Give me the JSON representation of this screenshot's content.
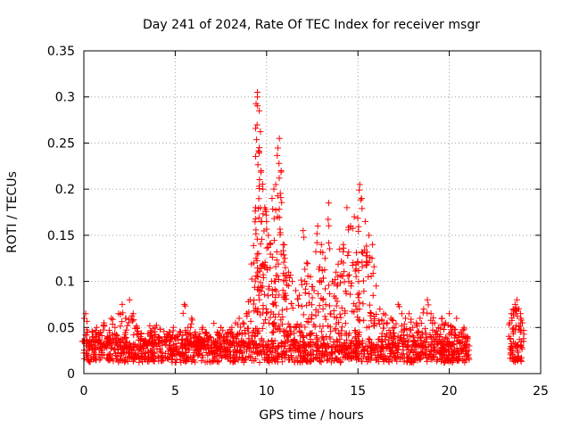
{
  "colors": {
    "series": "#ff0000",
    "grid": "#a0a0a0",
    "frame": "#000000",
    "background": "#ffffff"
  },
  "chart_data": {
    "type": "scatter",
    "title": "Day 241 of 2024, Rate Of TEC Index for receiver msgr",
    "xlabel": "GPS time / hours",
    "ylabel": "ROTI / TECUs",
    "xlim": [
      0,
      25
    ],
    "ylim": [
      0,
      0.35
    ],
    "xticks": [
      "0",
      "5",
      "10",
      "15",
      "20",
      "25"
    ],
    "yticks": [
      "0",
      "0.05",
      "0.1",
      "0.15",
      "0.2",
      "0.25",
      "0.3",
      "0.35"
    ],
    "grid": true,
    "marker": "plus",
    "legend": "none",
    "series": [
      {
        "color": "#ff0000",
        "x": [
          0.0,
          0.1,
          0.2,
          0.3,
          0.5,
          0.7,
          0.9,
          1.1,
          1.3,
          1.5,
          1.7,
          1.9,
          2.1,
          2.3,
          2.5,
          2.7,
          2.9,
          3.1,
          3.3,
          3.5,
          3.7,
          3.9,
          4.1,
          4.3,
          4.5,
          4.7,
          4.9,
          5.1,
          5.3,
          5.5,
          5.7,
          5.9,
          6.1,
          6.3,
          6.5,
          6.7,
          6.9,
          7.1,
          7.3,
          7.5,
          7.7,
          7.9,
          8.1,
          8.3,
          8.5,
          8.7,
          8.9,
          9.1,
          9.3,
          9.4,
          9.5,
          9.5,
          9.6,
          9.6,
          9.7,
          9.8,
          9.9,
          10.0,
          10.1,
          10.3,
          10.4,
          10.5,
          10.6,
          10.7,
          10.8,
          10.9,
          11.0,
          11.2,
          11.4,
          11.6,
          11.8,
          12.0,
          12.2,
          12.4,
          12.6,
          12.8,
          13.0,
          13.2,
          13.4,
          13.6,
          13.8,
          14.0,
          14.2,
          14.4,
          14.6,
          14.8,
          15.0,
          15.1,
          15.2,
          15.4,
          15.6,
          15.8,
          16.0,
          16.2,
          16.4,
          16.6,
          16.8,
          17.0,
          17.2,
          17.4,
          17.6,
          17.8,
          18.0,
          18.2,
          18.4,
          18.6,
          18.8,
          19.0,
          19.2,
          19.4,
          19.6,
          19.8,
          20.0,
          20.2,
          20.4,
          20.6,
          20.8,
          21.0,
          23.3,
          23.4,
          23.5,
          23.6,
          23.7,
          23.8,
          23.9,
          24.0
        ],
        "y": [
          0.035,
          0.065,
          0.045,
          0.03,
          0.04,
          0.05,
          0.045,
          0.055,
          0.04,
          0.06,
          0.05,
          0.065,
          0.075,
          0.06,
          0.08,
          0.065,
          0.05,
          0.04,
          0.035,
          0.03,
          0.045,
          0.05,
          0.04,
          0.035,
          0.04,
          0.045,
          0.05,
          0.04,
          0.045,
          0.075,
          0.05,
          0.06,
          0.045,
          0.04,
          0.05,
          0.045,
          0.04,
          0.035,
          0.045,
          0.05,
          0.04,
          0.045,
          0.05,
          0.055,
          0.06,
          0.055,
          0.065,
          0.08,
          0.12,
          0.18,
          0.3,
          0.305,
          0.285,
          0.245,
          0.22,
          0.2,
          0.18,
          0.165,
          0.15,
          0.19,
          0.2,
          0.205,
          0.17,
          0.255,
          0.22,
          0.14,
          0.125,
          0.11,
          0.1,
          0.09,
          0.085,
          0.155,
          0.12,
          0.105,
          0.09,
          0.16,
          0.14,
          0.125,
          0.185,
          0.1,
          0.11,
          0.135,
          0.14,
          0.18,
          0.16,
          0.17,
          0.12,
          0.205,
          0.19,
          0.165,
          0.15,
          0.14,
          0.095,
          0.07,
          0.065,
          0.055,
          0.06,
          0.05,
          0.075,
          0.065,
          0.06,
          0.065,
          0.05,
          0.055,
          0.06,
          0.07,
          0.08,
          0.065,
          0.055,
          0.05,
          0.06,
          0.055,
          0.065,
          0.05,
          0.06,
          0.045,
          0.05,
          0.04,
          0.055,
          0.065,
          0.07,
          0.075,
          0.08,
          0.07,
          0.065,
          0.055
        ],
        "band": [
          0.012,
          0.035
        ]
      }
    ]
  }
}
